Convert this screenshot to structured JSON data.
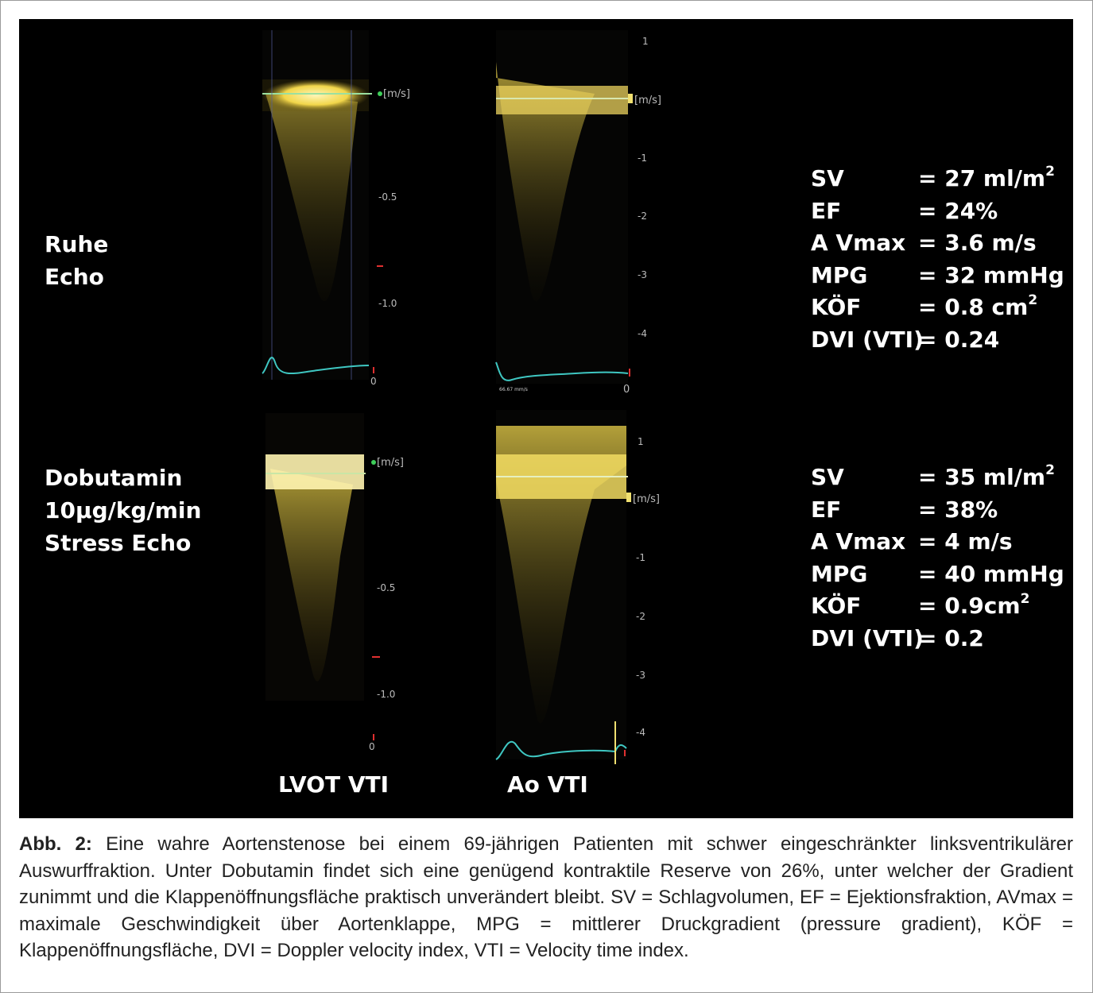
{
  "figure": {
    "rows": [
      {
        "label_lines": [
          "Ruhe",
          "Echo"
        ],
        "metrics": [
          {
            "name": "SV",
            "value": "= 27 ml/m",
            "sup": "2"
          },
          {
            "name": "EF",
            "value": "= 24%",
            "sup": ""
          },
          {
            "name": "A Vmax",
            "value": "= 3.6 m/s",
            "sup": ""
          },
          {
            "name": "MPG",
            "value": "= 32 mmHg",
            "sup": ""
          },
          {
            "name": "KÖF",
            "value": "= 0.8 cm",
            "sup": "2"
          },
          {
            "name": "DVI (VTI)",
            "value": "= 0.24",
            "sup": ""
          }
        ],
        "lvot": {
          "unit": "[m/s]",
          "ticks": [
            "-0.5",
            "-1.0",
            "0"
          ]
        },
        "ao": {
          "unit": "[m/s]",
          "ticks": [
            "1",
            "-1",
            "-2",
            "-3",
            "-4",
            "0"
          ],
          "speed": "66.67 mm/s"
        }
      },
      {
        "label_lines": [
          "Dobutamin",
          "10µg/kg/min",
          "Stress Echo"
        ],
        "metrics": [
          {
            "name": "SV",
            "value": "= 35 ml/m",
            "sup": "2"
          },
          {
            "name": "EF",
            "value": "= 38%",
            "sup": ""
          },
          {
            "name": "A Vmax",
            "value": "= 4 m/s",
            "sup": ""
          },
          {
            "name": "MPG",
            "value": "= 40 mmHg",
            "sup": ""
          },
          {
            "name": "KÖF",
            "value": "= 0.9cm",
            "sup": "2"
          },
          {
            "name": "DVI (VTI)",
            "value": "= 0.2",
            "sup": ""
          }
        ],
        "lvot": {
          "unit": "[m/s]",
          "ticks": [
            "-0.5",
            "-1.0",
            "0"
          ]
        },
        "ao": {
          "unit": "[m/s]",
          "ticks": [
            "1",
            "-1",
            "-2",
            "-3",
            "-4"
          ]
        }
      }
    ],
    "column_labels": {
      "lvot": "LVOT VTI",
      "ao": "Ao VTI"
    }
  },
  "caption": {
    "label": "Abb. 2:",
    "text": " Eine wahre Aortenstenose bei einem 69-jährigen Patienten mit schwer eingeschränkter linksventrikulärer Auswurffraktion. Unter Dobutamin findet sich eine genügend kontraktile Reserve von 26%, unter welcher der Gradient zunimmt und die Klappenöffnungsfläche praktisch unverändert bleibt. SV = Schlagvolumen, EF = Ejektionsfraktion, AVmax = maximale Geschwindigkeit über Aortenklappe, MPG = mittlerer Druckgradient (pressure gradient), KÖF = Klappenöffnungsfläche, DVI = Doppler velocity index, VTI = Velocity time index."
  },
  "colors": {
    "doppler_signal": "#f2e27a",
    "ecg_trace": "#3fc7c2",
    "marker_green": "#3fcf5a",
    "marker_red": "#e03030"
  }
}
